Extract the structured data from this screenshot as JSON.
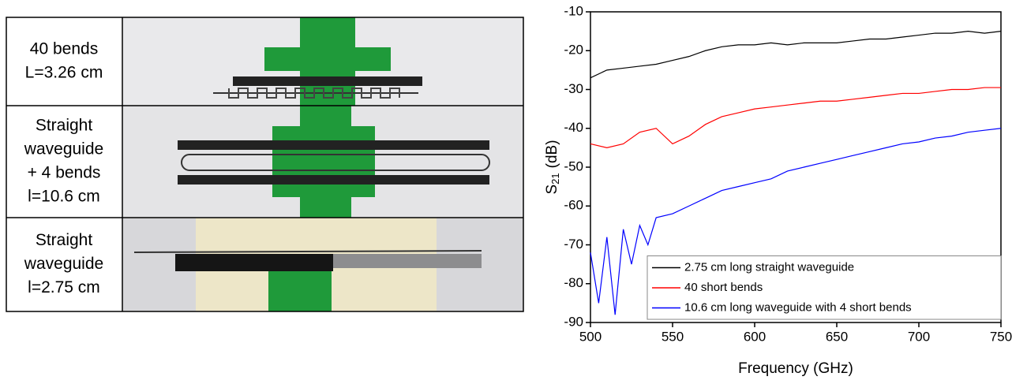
{
  "table": {
    "rows": [
      [
        "40 bends",
        "L=3.26 cm"
      ],
      [
        "Straight",
        "waveguide",
        "+ 4 bends",
        "l=10.6 cm"
      ],
      [
        "Straight",
        "waveguide",
        "l=2.75 cm"
      ]
    ]
  },
  "chart_data": {
    "type": "line",
    "xlabel": "Frequency (GHz)",
    "ylabel": "S",
    "ylabel_sub": "21",
    "ylabel_unit": "(dB)",
    "xlim": [
      500,
      750
    ],
    "xticks": [
      500,
      550,
      600,
      650,
      700,
      750
    ],
    "ylim": [
      -90,
      -10
    ],
    "yticks": [
      -90,
      -80,
      -70,
      -60,
      -50,
      -40,
      -30,
      -20,
      -10
    ],
    "legend": "bottom-right",
    "series": [
      {
        "name": "2.75 cm long straight waveguide",
        "color": "#000000",
        "x": [
          500,
          510,
          520,
          530,
          540,
          550,
          560,
          570,
          580,
          590,
          600,
          610,
          620,
          630,
          640,
          650,
          660,
          670,
          680,
          690,
          700,
          710,
          720,
          730,
          740,
          750
        ],
        "values": [
          -27,
          -25,
          -24.5,
          -24,
          -23.5,
          -22.5,
          -21.5,
          -20,
          -19,
          -18.5,
          -18.5,
          -18,
          -18.5,
          -18,
          -18,
          -18,
          -17.5,
          -17,
          -17,
          -16.5,
          -16,
          -15.5,
          -15.5,
          -15,
          -15.5,
          -15
        ]
      },
      {
        "name": "40 short bends",
        "color": "#ff0000",
        "x": [
          500,
          510,
          520,
          530,
          540,
          550,
          560,
          570,
          580,
          590,
          600,
          610,
          620,
          630,
          640,
          650,
          660,
          670,
          680,
          690,
          700,
          710,
          720,
          730,
          740,
          750
        ],
        "values": [
          -44,
          -45,
          -44,
          -41,
          -40,
          -44,
          -42,
          -39,
          -37,
          -36,
          -35,
          -34.5,
          -34,
          -33.5,
          -33,
          -33,
          -32.5,
          -32,
          -31.5,
          -31,
          -31,
          -30.5,
          -30,
          -30,
          -29.5,
          -29.5
        ]
      },
      {
        "name": "10.6 cm long waveguide with 4 short bends",
        "color": "#0000ff",
        "x": [
          500,
          505,
          510,
          515,
          520,
          525,
          530,
          535,
          540,
          550,
          560,
          570,
          580,
          590,
          600,
          610,
          620,
          630,
          640,
          650,
          660,
          670,
          680,
          690,
          700,
          710,
          720,
          730,
          740,
          750
        ],
        "values": [
          -72,
          -85,
          -68,
          -88,
          -66,
          -75,
          -65,
          -70,
          -63,
          -62,
          -60,
          -58,
          -56,
          -55,
          -54,
          -53,
          -51,
          -50,
          -49,
          -48,
          -47,
          -46,
          -45,
          -44,
          -43.5,
          -42.5,
          -42,
          -41,
          -40.5,
          -40
        ]
      }
    ]
  }
}
